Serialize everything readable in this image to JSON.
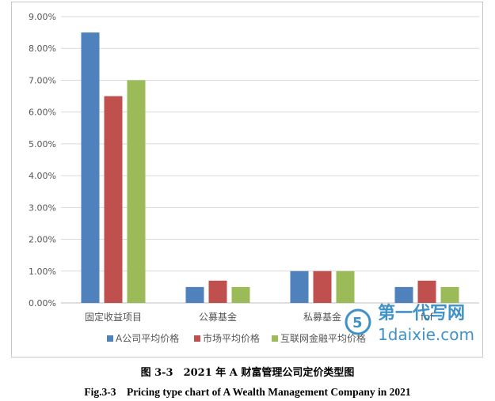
{
  "chart_data": {
    "type": "bar",
    "categories": [
      "固定收益项目",
      "公募基金",
      "私募基金",
      "fof"
    ],
    "series": [
      {
        "name": "A公司平均价格",
        "values": [
          8.5,
          0.5,
          1.0,
          0.5
        ],
        "color": "#4F81BD"
      },
      {
        "name": "市场平均价格",
        "values": [
          6.5,
          0.7,
          1.0,
          0.7
        ],
        "color": "#C0504D"
      },
      {
        "name": "互联网金融平均价格",
        "values": [
          7.0,
          0.5,
          1.0,
          0.5
        ],
        "color": "#9BBB59"
      }
    ],
    "yticks": [
      "0.00%",
      "1.00%",
      "2.00%",
      "3.00%",
      "4.00%",
      "5.00%",
      "6.00%",
      "7.00%",
      "8.00%",
      "9.00%"
    ],
    "ylim": [
      0,
      9
    ],
    "grid": true,
    "legend_position": "bottom"
  },
  "caption": {
    "cn": "图 3-3　2021 年 A 财富管理公司定价类型图",
    "en": "Fig.3-3　Pricing type chart of A Wealth Management Company in 2021"
  },
  "watermark": {
    "text_cn": "第一代写网",
    "text_en": "1daixie.com"
  }
}
